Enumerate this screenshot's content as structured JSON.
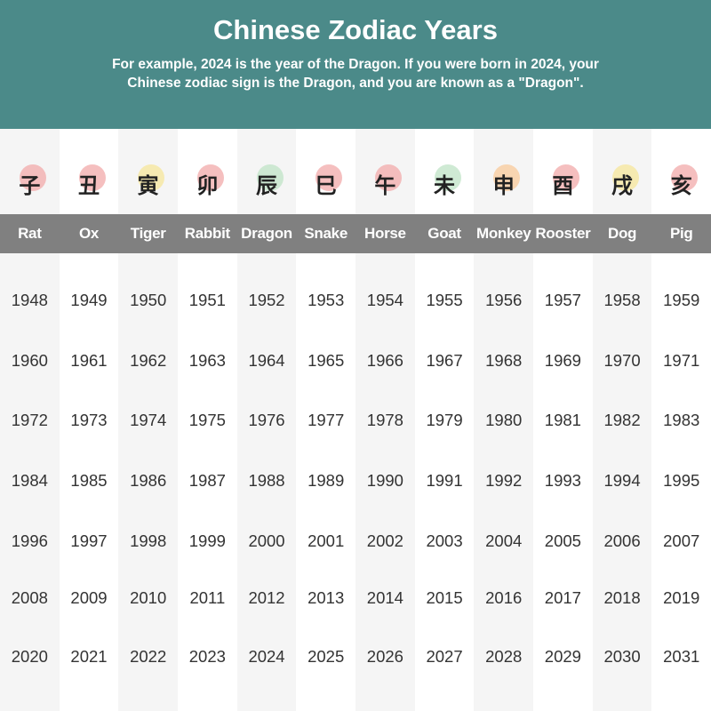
{
  "header": {
    "title": "Chinese Zodiac Years",
    "line1": "For example, 2024 is the year of the Dragon. If you were born in 2024, your",
    "line2": "Chinese zodiac sign is the Dragon, and you are known as a \"Dragon\"."
  },
  "animals": [
    {
      "name": "Rat",
      "char": "子",
      "blob": "#f2a9a9",
      "years": [
        "1948",
        "1960",
        "1972",
        "1984",
        "1996",
        "2008",
        "2020"
      ]
    },
    {
      "name": "Ox",
      "char": "丑",
      "blob": "#f2a9a9",
      "years": [
        "1949",
        "1961",
        "1973",
        "1985",
        "1997",
        "2009",
        "2021"
      ]
    },
    {
      "name": "Tiger",
      "char": "寅",
      "blob": "#f6e59a",
      "years": [
        "1950",
        "1962",
        "1974",
        "1986",
        "1998",
        "2010",
        "2022"
      ]
    },
    {
      "name": "Rabbit",
      "char": "卯",
      "blob": "#f2a9a9",
      "years": [
        "1951",
        "1963",
        "1975",
        "1987",
        "1999",
        "2011",
        "2023"
      ]
    },
    {
      "name": "Dragon",
      "char": "辰",
      "blob": "#bfe3c6",
      "years": [
        "1952",
        "1964",
        "1976",
        "1988",
        "2000",
        "2012",
        "2024"
      ]
    },
    {
      "name": "Snake",
      "char": "巳",
      "blob": "#f2a9a9",
      "years": [
        "1953",
        "1965",
        "1977",
        "1989",
        "2001",
        "2013",
        "2025"
      ]
    },
    {
      "name": "Horse",
      "char": "午",
      "blob": "#f2a9a9",
      "years": [
        "1954",
        "1966",
        "1978",
        "1990",
        "2002",
        "2014",
        "2026"
      ]
    },
    {
      "name": "Goat",
      "char": "未",
      "blob": "#bfe3c6",
      "years": [
        "1955",
        "1967",
        "1979",
        "1991",
        "2003",
        "2015",
        "2027"
      ]
    },
    {
      "name": "Monkey",
      "char": "申",
      "blob": "#f8c99a",
      "years": [
        "1956",
        "1968",
        "1980",
        "1992",
        "2004",
        "2016",
        "2028"
      ]
    },
    {
      "name": "Rooster",
      "char": "酉",
      "blob": "#f2a9a9",
      "years": [
        "1957",
        "1969",
        "1981",
        "1993",
        "2005",
        "2017",
        "2029"
      ]
    },
    {
      "name": "Dog",
      "char": "戌",
      "blob": "#f6e59a",
      "years": [
        "1958",
        "1970",
        "1982",
        "1994",
        "2006",
        "2018",
        "2030"
      ]
    },
    {
      "name": "Pig",
      "char": "亥",
      "blob": "#f2a9a9",
      "years": [
        "1959",
        "1971",
        "1983",
        "1995",
        "2007",
        "2019",
        "2031"
      ]
    }
  ]
}
